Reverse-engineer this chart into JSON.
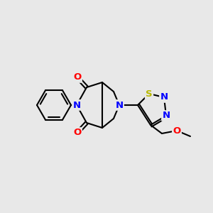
{
  "background_color": "#e8e8e8",
  "bond_color": "#000000",
  "bond_width": 1.5,
  "atom_colors": {
    "N": "#0000ff",
    "O": "#ff0000",
    "S": "#b8b800",
    "C": "#000000"
  },
  "font_size": 9.5,
  "fig_size": [
    3.0,
    3.0
  ],
  "dpi": 100
}
